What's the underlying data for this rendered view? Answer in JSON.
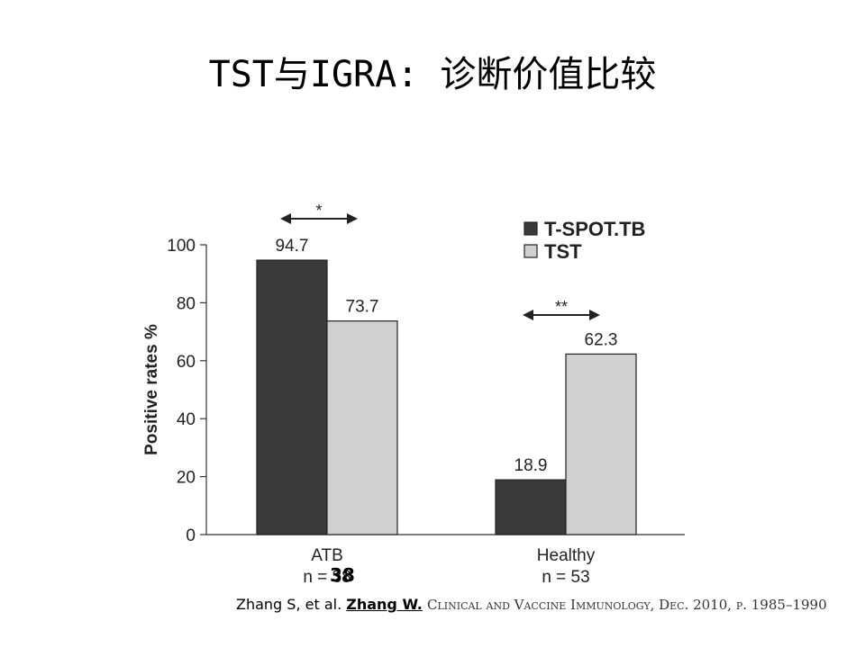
{
  "slide": {
    "title": "TST与IGRA: 诊断价值比较",
    "overlay_number": "38"
  },
  "citation": {
    "authors": "Zhang S, et al.",
    "highlight": "Zhang W.",
    "journal": "Clinical and Vaccine Immunology, Dec. 2010, p. 1985–1990"
  },
  "chart_data": {
    "type": "bar",
    "categories": [
      "ATB",
      "Healthy"
    ],
    "category_n": [
      "n = 38",
      "n = 53"
    ],
    "series": [
      {
        "name": "T-SPOT.TB",
        "values": [
          94.7,
          18.9
        ],
        "labels": [
          "94.7",
          "18.9"
        ],
        "color": "#3a3a3a"
      },
      {
        "name": "TST",
        "values": [
          73.7,
          62.3
        ],
        "labels": [
          "73.7",
          "62.3"
        ],
        "color": "#d0d0d0"
      }
    ],
    "ylabel": "Positive rates %",
    "ylim": [
      0,
      100
    ],
    "yticks": [
      0,
      20,
      40,
      60,
      80,
      100
    ],
    "legend_position": "top-right",
    "significance": [
      {
        "category": "ATB",
        "label": "*"
      },
      {
        "category": "Healthy",
        "label": "**"
      }
    ]
  }
}
